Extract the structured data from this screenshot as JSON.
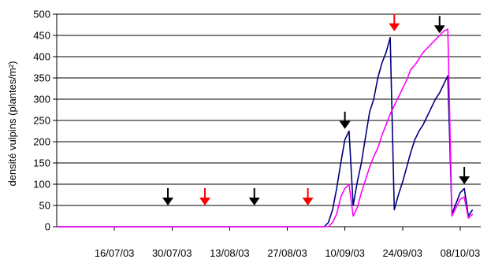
{
  "chart_data": {
    "type": "line",
    "title": "",
    "xlabel": "",
    "ylabel": "densité vulpins (plantes/m²)",
    "ylim": [
      0,
      500
    ],
    "yticks": [
      0,
      50,
      100,
      150,
      200,
      250,
      300,
      350,
      400,
      450,
      500
    ],
    "xlim": [
      "2003-07-02",
      "2003-10-13"
    ],
    "xticks": [
      {
        "date": "2003-07-16",
        "label": "16/07/03"
      },
      {
        "date": "2003-07-30",
        "label": "30/07/03"
      },
      {
        "date": "2003-08-13",
        "label": "13/08/03"
      },
      {
        "date": "2003-08-27",
        "label": "27/08/03"
      },
      {
        "date": "2003-09-10",
        "label": "10/09/03"
      },
      {
        "date": "2003-09-24",
        "label": "24/09/03"
      },
      {
        "date": "2003-10-08",
        "label": "08/10/03"
      }
    ],
    "grid": "horizontal",
    "legend": "none",
    "series": [
      {
        "color": "#000080",
        "points": [
          [
            "2003-07-02",
            0
          ],
          [
            "2003-09-05",
            0
          ],
          [
            "2003-09-06",
            10
          ],
          [
            "2003-09-07",
            40
          ],
          [
            "2003-09-08",
            90
          ],
          [
            "2003-09-09",
            150
          ],
          [
            "2003-09-10",
            205
          ],
          [
            "2003-09-11",
            225
          ],
          [
            "2003-09-12",
            50
          ],
          [
            "2003-09-13",
            105
          ],
          [
            "2003-09-14",
            150
          ],
          [
            "2003-09-15",
            210
          ],
          [
            "2003-09-16",
            270
          ],
          [
            "2003-09-17",
            300
          ],
          [
            "2003-09-18",
            350
          ],
          [
            "2003-09-19",
            385
          ],
          [
            "2003-09-20",
            410
          ],
          [
            "2003-09-21",
            445
          ],
          [
            "2003-09-22",
            40
          ],
          [
            "2003-09-23",
            75
          ],
          [
            "2003-09-24",
            105
          ],
          [
            "2003-09-25",
            140
          ],
          [
            "2003-09-26",
            175
          ],
          [
            "2003-09-27",
            205
          ],
          [
            "2003-09-28",
            225
          ],
          [
            "2003-09-29",
            240
          ],
          [
            "2003-09-30",
            260
          ],
          [
            "2003-10-01",
            280
          ],
          [
            "2003-10-02",
            300
          ],
          [
            "2003-10-03",
            315
          ],
          [
            "2003-10-04",
            335
          ],
          [
            "2003-10-05",
            355
          ],
          [
            "2003-10-06",
            30
          ],
          [
            "2003-10-07",
            55
          ],
          [
            "2003-10-08",
            80
          ],
          [
            "2003-10-09",
            90
          ],
          [
            "2003-10-10",
            25
          ],
          [
            "2003-10-11",
            40
          ]
        ]
      },
      {
        "color": "#ff00ff",
        "points": [
          [
            "2003-07-02",
            0
          ],
          [
            "2003-09-06",
            0
          ],
          [
            "2003-09-07",
            10
          ],
          [
            "2003-09-08",
            30
          ],
          [
            "2003-09-09",
            70
          ],
          [
            "2003-09-10",
            90
          ],
          [
            "2003-09-11",
            100
          ],
          [
            "2003-09-12",
            25
          ],
          [
            "2003-09-13",
            45
          ],
          [
            "2003-09-14",
            80
          ],
          [
            "2003-09-15",
            110
          ],
          [
            "2003-09-16",
            140
          ],
          [
            "2003-09-17",
            165
          ],
          [
            "2003-09-18",
            185
          ],
          [
            "2003-09-19",
            215
          ],
          [
            "2003-09-20",
            240
          ],
          [
            "2003-09-21",
            265
          ],
          [
            "2003-09-22",
            285
          ],
          [
            "2003-09-23",
            305
          ],
          [
            "2003-09-24",
            325
          ],
          [
            "2003-09-25",
            345
          ],
          [
            "2003-09-26",
            370
          ],
          [
            "2003-09-27",
            380
          ],
          [
            "2003-09-28",
            395
          ],
          [
            "2003-09-29",
            410
          ],
          [
            "2003-09-30",
            420
          ],
          [
            "2003-10-01",
            430
          ],
          [
            "2003-10-02",
            440
          ],
          [
            "2003-10-03",
            450
          ],
          [
            "2003-10-04",
            460
          ],
          [
            "2003-10-05",
            465
          ],
          [
            "2003-10-06",
            25
          ],
          [
            "2003-10-07",
            45
          ],
          [
            "2003-10-08",
            65
          ],
          [
            "2003-10-09",
            70
          ],
          [
            "2003-10-10",
            20
          ],
          [
            "2003-10-11",
            30
          ]
        ]
      }
    ],
    "annotations": [
      {
        "type": "down-arrow",
        "date": "2003-07-29",
        "y": 50,
        "color": "#000000"
      },
      {
        "type": "down-arrow",
        "date": "2003-08-07",
        "y": 50,
        "color": "#ff0000"
      },
      {
        "type": "down-arrow",
        "date": "2003-08-19",
        "y": 50,
        "color": "#000000"
      },
      {
        "type": "down-arrow",
        "date": "2003-09-01",
        "y": 50,
        "color": "#ff0000"
      },
      {
        "type": "down-arrow",
        "date": "2003-09-10",
        "y": 230,
        "color": "#000000"
      },
      {
        "type": "down-arrow",
        "date": "2003-09-22",
        "y": 460,
        "color": "#ff0000"
      },
      {
        "type": "down-arrow",
        "date": "2003-10-03",
        "y": 455,
        "color": "#000000"
      },
      {
        "type": "down-arrow",
        "date": "2003-10-09",
        "y": 100,
        "color": "#000000"
      }
    ]
  }
}
